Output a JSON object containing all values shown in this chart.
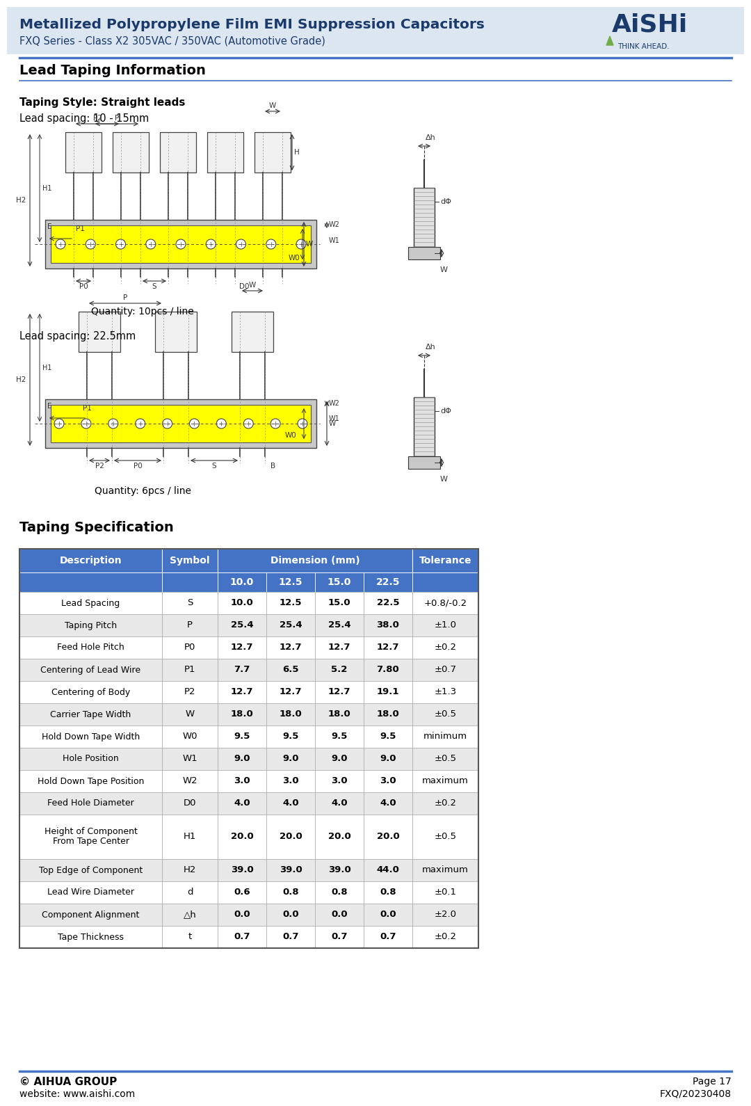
{
  "header_title_line1": "Metallized Polypropylene Film EMI Suppression Capacitors",
  "header_title_line2": "FXQ Series - Class X2 305VAC / 350VAC (Automotive Grade)",
  "header_bg_color": "#dce6f1",
  "header_title_color": "#1a3a6b",
  "section1_title": "Lead Taping Information",
  "taping_style_label": "Taping Style: Straight leads",
  "lead_spacing_1": "Lead spacing: 10 - 15mm",
  "quantity_1": "Quantity: 10pcs / line",
  "lead_spacing_2": "Lead spacing: 22.5mm",
  "quantity_2": "Quantity: 6pcs / line",
  "section2_title": "Taping Specification",
  "table_header_bg": "#4472c4",
  "table_header_text": "#ffffff",
  "table_alt_row_bg": "#e8e8e8",
  "table_white_row_bg": "#ffffff",
  "table_border_color": "#999999",
  "table_dim_header": "Dimension (mm)",
  "table_rows": [
    [
      "Lead Spacing",
      "S",
      "10.0",
      "12.5",
      "15.0",
      "22.5",
      "+0.8/-0.2"
    ],
    [
      "Taping Pitch",
      "P",
      "25.4",
      "25.4",
      "25.4",
      "38.0",
      "±1.0"
    ],
    [
      "Feed Hole Pitch",
      "P0",
      "12.7",
      "12.7",
      "12.7",
      "12.7",
      "±0.2"
    ],
    [
      "Centering of Lead Wire",
      "P1",
      "7.7",
      "6.5",
      "5.2",
      "7.80",
      "±0.7"
    ],
    [
      "Centering of Body",
      "P2",
      "12.7",
      "12.7",
      "12.7",
      "19.1",
      "±1.3"
    ],
    [
      "Carrier Tape Width",
      "W",
      "18.0",
      "18.0",
      "18.0",
      "18.0",
      "±0.5"
    ],
    [
      "Hold Down Tape Width",
      "W0",
      "9.5",
      "9.5",
      "9.5",
      "9.5",
      "minimum"
    ],
    [
      "Hole Position",
      "W1",
      "9.0",
      "9.0",
      "9.0",
      "9.0",
      "±0.5"
    ],
    [
      "Hold Down Tape Position",
      "W2",
      "3.0",
      "3.0",
      "3.0",
      "3.0",
      "maximum"
    ],
    [
      "Feed Hole Diameter",
      "D0",
      "4.0",
      "4.0",
      "4.0",
      "4.0",
      "±0.2"
    ],
    [
      "Height of Component\nFrom Tape Center",
      "H1",
      "20.0",
      "20.0",
      "20.0",
      "20.0",
      "±0.5"
    ],
    [
      "Top Edge of Component",
      "H2",
      "39.0",
      "39.0",
      "39.0",
      "44.0",
      "maximum"
    ],
    [
      "Lead Wire Diameter",
      "d",
      "0.6",
      "0.8",
      "0.8",
      "0.8",
      "±0.1"
    ],
    [
      "Component Alignment",
      "△h",
      "0.0",
      "0.0",
      "0.0",
      "0.0",
      "±2.0"
    ],
    [
      "Tape Thickness",
      "t",
      "0.7",
      "0.7",
      "0.7",
      "0.7",
      "±0.2"
    ]
  ],
  "footer_left_line1": "© AIHUA GROUP",
  "footer_left_line2": "website: www.aishi.com",
  "footer_right_line1": "Page 17",
  "footer_right_line2": "FXQ/20230408",
  "footer_line_color": "#4472c4"
}
